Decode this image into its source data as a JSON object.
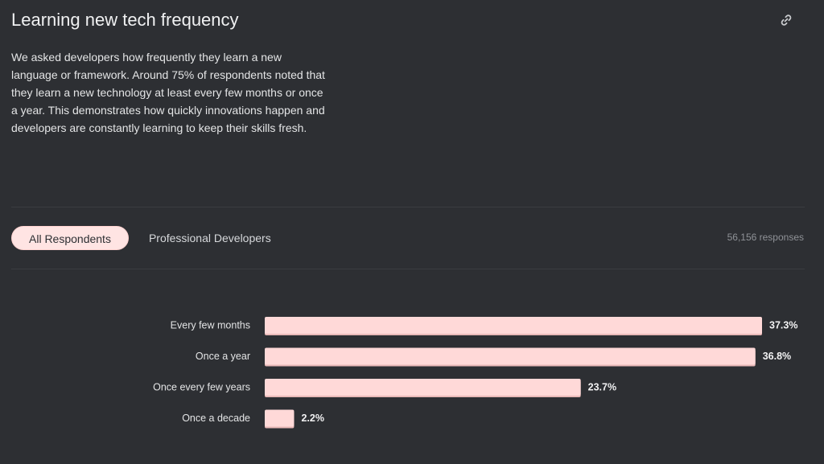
{
  "header": {
    "title": "Learning new tech frequency",
    "link_icon": "link-icon"
  },
  "description": "We asked developers how frequently they learn a new language or framework. Around 75% of respondents noted that they learn a new technology at least every few months or once a year. This demonstrates how quickly innovations happen and developers are constantly learning to keep their skills fresh.",
  "tabs": [
    {
      "label": "All Respondents",
      "active": true
    },
    {
      "label": "Professional Developers",
      "active": false
    }
  ],
  "responses": "56,156 responses",
  "colors": {
    "background": "#2d2f33",
    "bar": "#ffd9d8",
    "bar_shadow": "#e9b9b8",
    "label": "#e4e5e6"
  },
  "chart_data": {
    "type": "bar",
    "orientation": "horizontal",
    "categories": [
      "Every few months",
      "Once a year",
      "Once every few years",
      "Once a decade"
    ],
    "values": [
      37.3,
      36.8,
      23.7,
      2.2
    ],
    "value_labels": [
      "37.3%",
      "36.8%",
      "23.7%",
      "2.2%"
    ],
    "xlim": [
      0,
      37.3
    ],
    "grid": false,
    "title": "",
    "xlabel": "",
    "ylabel": ""
  }
}
